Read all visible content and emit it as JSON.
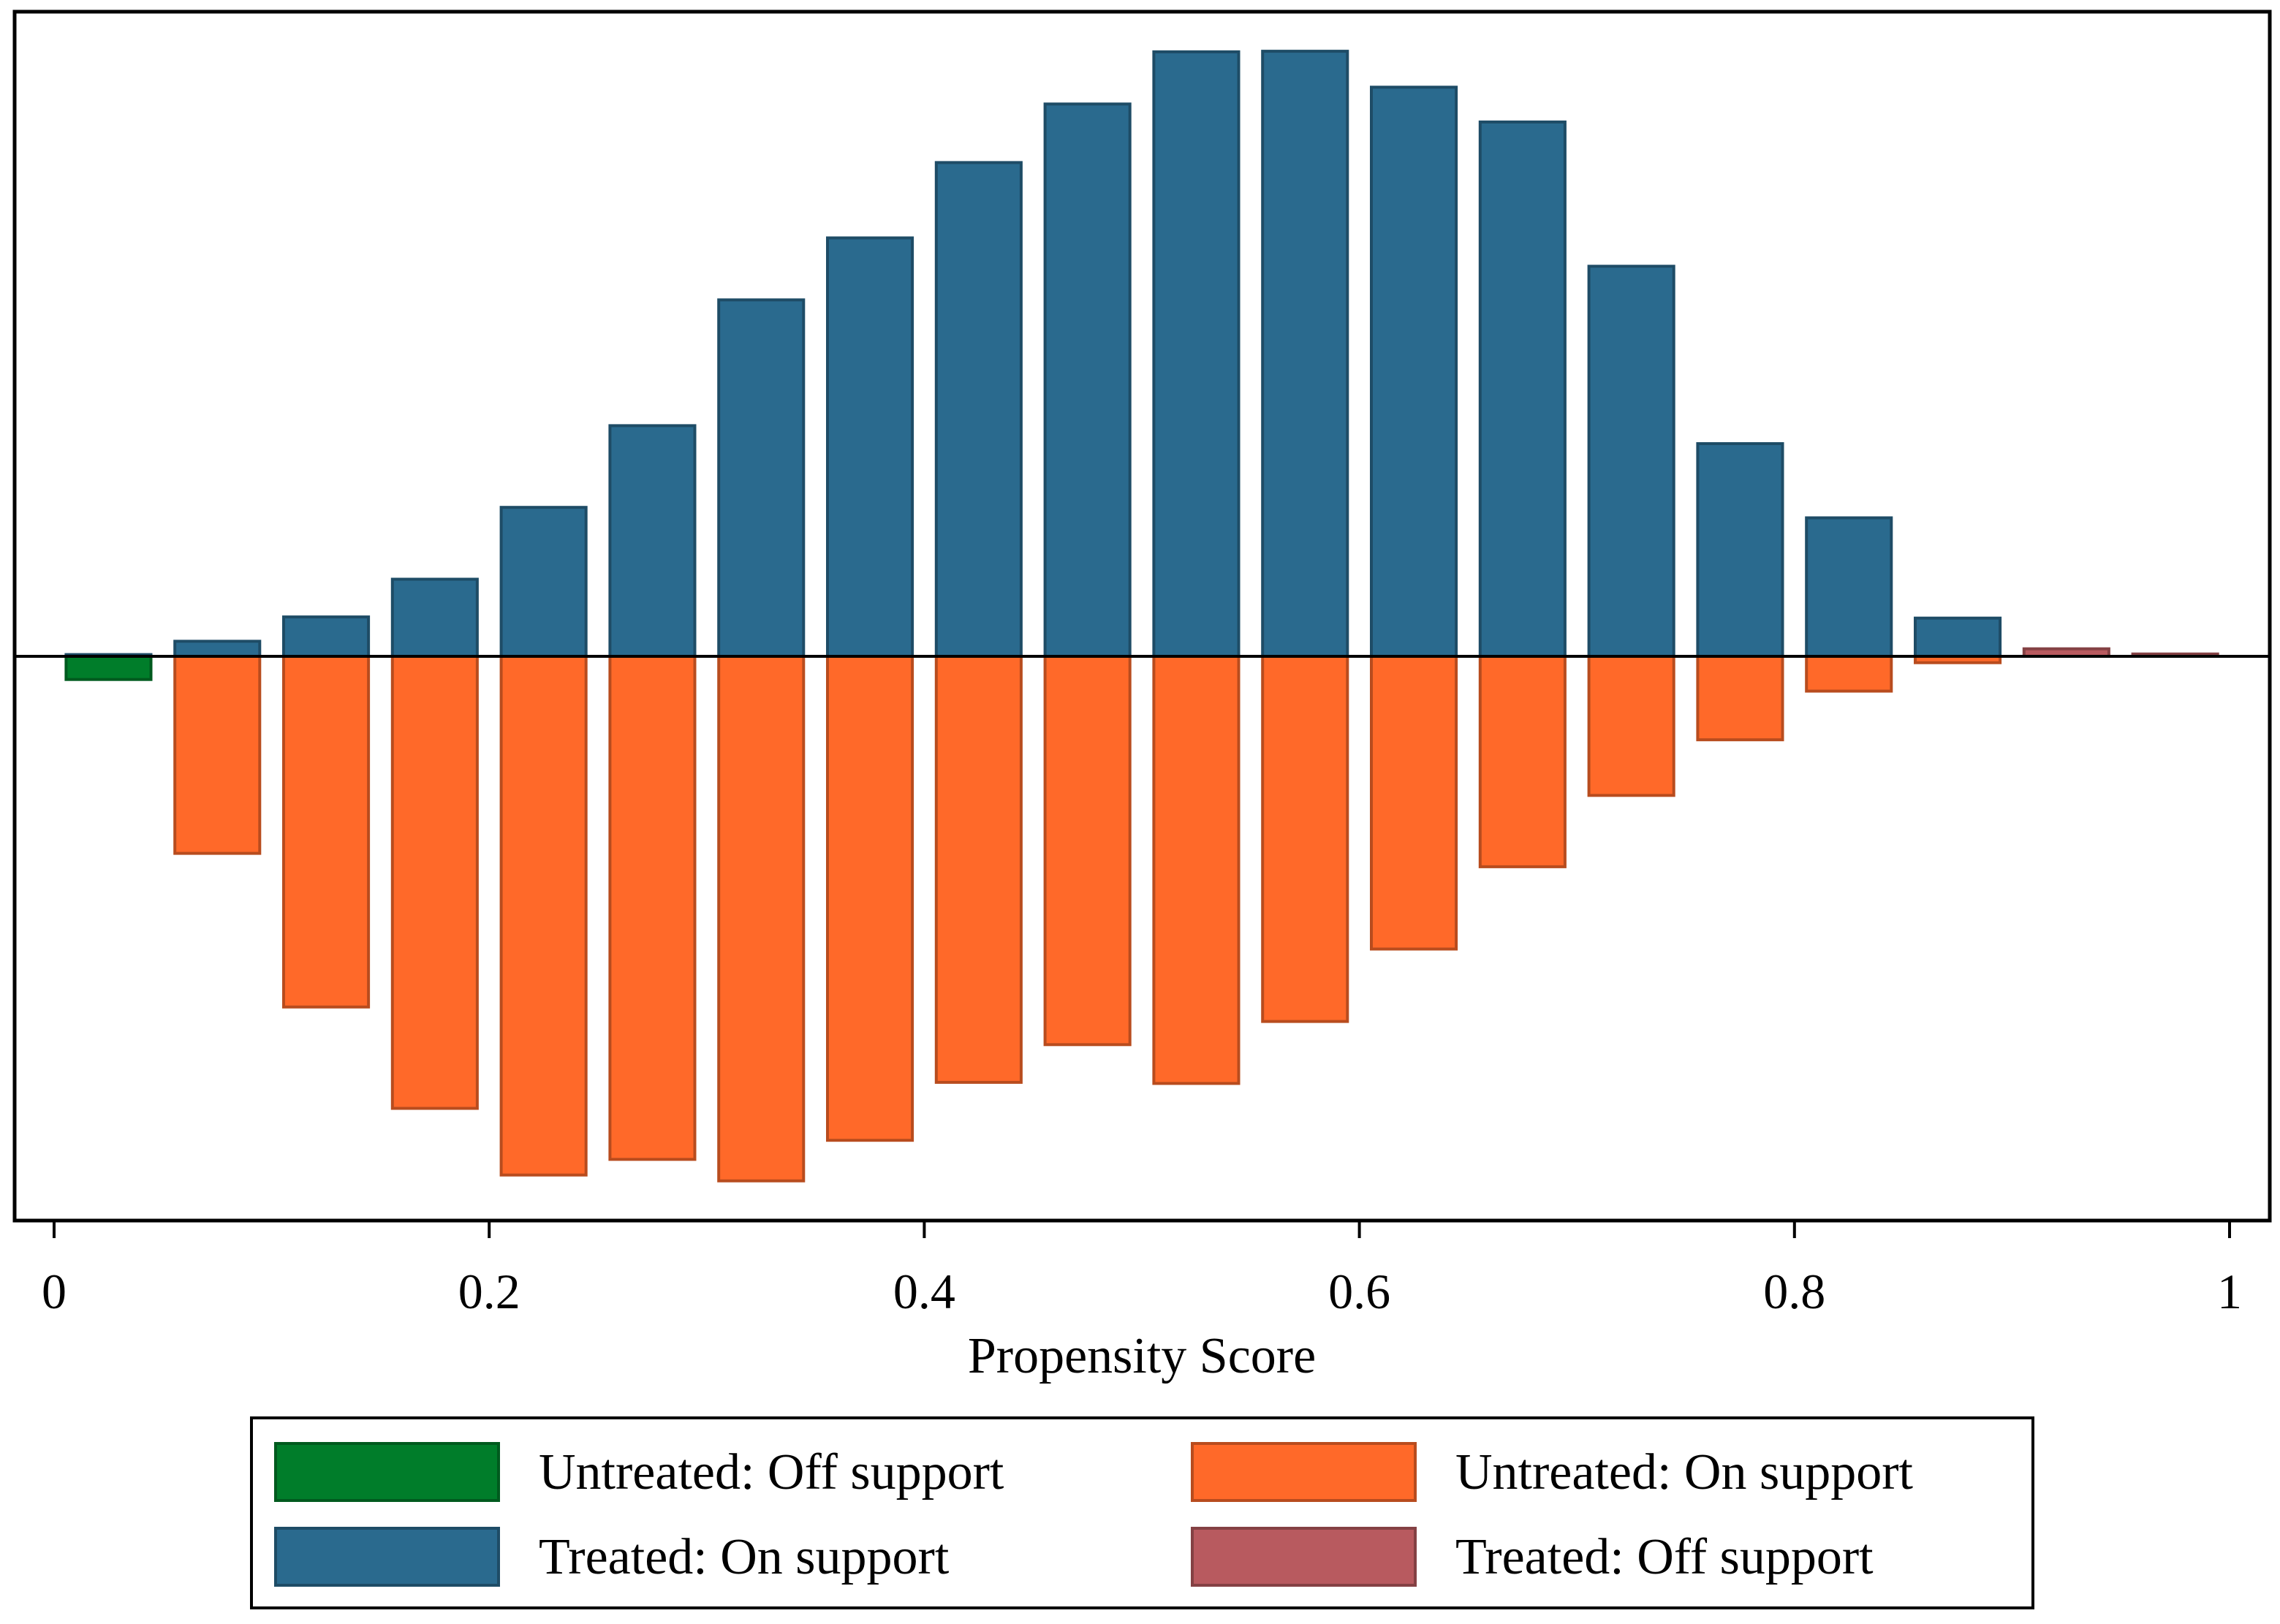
{
  "chart_data": {
    "type": "bar",
    "title": "",
    "xlabel": "Propensity Score",
    "ylabel": "",
    "xlim": [
      0,
      1
    ],
    "ylim": [
      -0.09,
      0.104
    ],
    "y_axis_visible": false,
    "bin_width": 0.05,
    "x_ticks": [
      0,
      0.2,
      0.4,
      0.6,
      0.8,
      1
    ],
    "x_tick_labels": [
      "0",
      "0.2",
      "0.4",
      "0.6",
      "0.8",
      "1"
    ],
    "grid": false,
    "legend_position": "bottom",
    "legend_columns": 2,
    "series": [
      {
        "name": "Untreated: Off support",
        "color": "#007d2a",
        "direction": "down",
        "x": [
          0.025
        ],
        "values": [
          0.004
        ]
      },
      {
        "name": "Untreated: On support",
        "color": "#ff6929",
        "direction": "down",
        "x": [
          0.075,
          0.125,
          0.175,
          0.225,
          0.275,
          0.325,
          0.375,
          0.425,
          0.475,
          0.525,
          0.575,
          0.625,
          0.675,
          0.725,
          0.775,
          0.825,
          0.875
        ],
        "values": [
          0.034,
          0.0605,
          0.078,
          0.0895,
          0.0868,
          0.0905,
          0.0835,
          0.0735,
          0.067,
          0.0737,
          0.063,
          0.0505,
          0.0363,
          0.024,
          0.0144,
          0.006,
          0.0011
        ]
      },
      {
        "name": "Treated: On support",
        "color": "#2a6a8e",
        "direction": "up",
        "x": [
          0.025,
          0.075,
          0.125,
          0.175,
          0.225,
          0.275,
          0.325,
          0.375,
          0.425,
          0.475,
          0.525,
          0.575,
          0.625,
          0.675,
          0.725,
          0.775,
          0.825,
          0.875
        ],
        "values": [
          0.0003,
          0.0026,
          0.0068,
          0.0133,
          0.0257,
          0.0398,
          0.0615,
          0.0722,
          0.0852,
          0.0953,
          0.1043,
          0.1044,
          0.0982,
          0.0922,
          0.0673,
          0.0367,
          0.0239,
          0.0066
        ]
      },
      {
        "name": "Treated: Off support",
        "color": "#b85a5f",
        "direction": "up",
        "x": [
          0.925,
          0.975
        ],
        "values": [
          0.0013,
          0.0004
        ]
      }
    ]
  }
}
